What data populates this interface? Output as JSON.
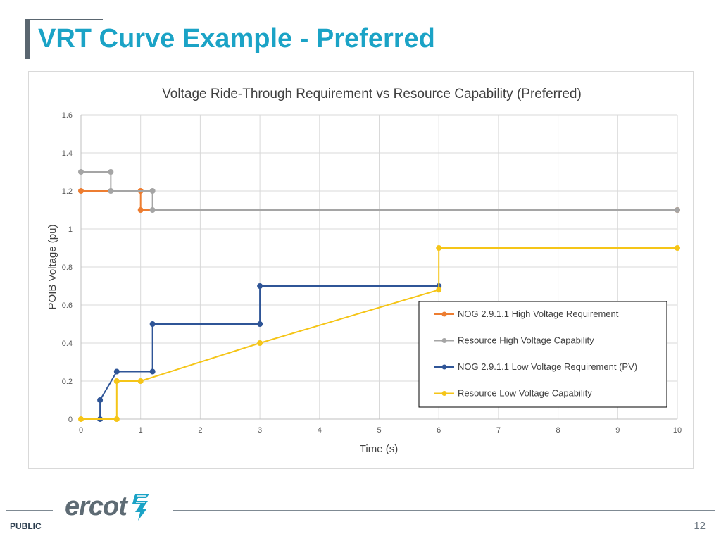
{
  "slide": {
    "title": "VRT Curve Example - Preferred",
    "footer_label": "PUBLIC",
    "page_number": "12",
    "logo_text": "ercot",
    "accent_color": "#1ba3c6"
  },
  "chart_data": {
    "type": "line",
    "title": "Voltage Ride-Through Requirement vs Resource Capability (Preferred)",
    "xlabel": "Time (s)",
    "ylabel": "POIB Voltage (pu)",
    "xlim": [
      0,
      10
    ],
    "ylim": [
      0,
      1.6
    ],
    "xticks": [
      0,
      1,
      2,
      3,
      4,
      5,
      6,
      7,
      8,
      9,
      10
    ],
    "yticks": [
      0,
      0.2,
      0.4,
      0.6,
      0.8,
      1,
      1.2,
      1.4,
      1.6
    ],
    "grid": true,
    "legend_position": "lower-right",
    "series": [
      {
        "name": "NOG 2.9.1.1 High Voltage Requirement",
        "color": "#ed7d31",
        "points": [
          [
            0,
            1.2
          ],
          [
            1,
            1.2
          ],
          [
            1,
            1.1
          ],
          [
            10,
            1.1
          ]
        ]
      },
      {
        "name": "Resource High Voltage Capability",
        "color": "#a5a5a5",
        "points": [
          [
            0,
            1.3
          ],
          [
            0.5,
            1.3
          ],
          [
            0.5,
            1.2
          ],
          [
            1.2,
            1.2
          ],
          [
            1.2,
            1.1
          ],
          [
            10,
            1.1
          ]
        ]
      },
      {
        "name": "NOG 2.9.1.1 Low Voltage Requirement (PV)",
        "color": "#2f5597",
        "points": [
          [
            0.32,
            0
          ],
          [
            0.32,
            0.1
          ],
          [
            0.6,
            0.25
          ],
          [
            1.2,
            0.25
          ],
          [
            1.2,
            0.5
          ],
          [
            3,
            0.5
          ],
          [
            3,
            0.7
          ],
          [
            6,
            0.7
          ]
        ]
      },
      {
        "name": "Resource Low Voltage Capability",
        "color": "#f5c518",
        "points": [
          [
            0,
            0
          ],
          [
            0.6,
            0
          ],
          [
            0.6,
            0.2
          ],
          [
            1,
            0.2
          ],
          [
            3,
            0.4
          ],
          [
            6,
            0.68
          ],
          [
            6,
            0.9
          ],
          [
            10,
            0.9
          ]
        ]
      }
    ]
  }
}
